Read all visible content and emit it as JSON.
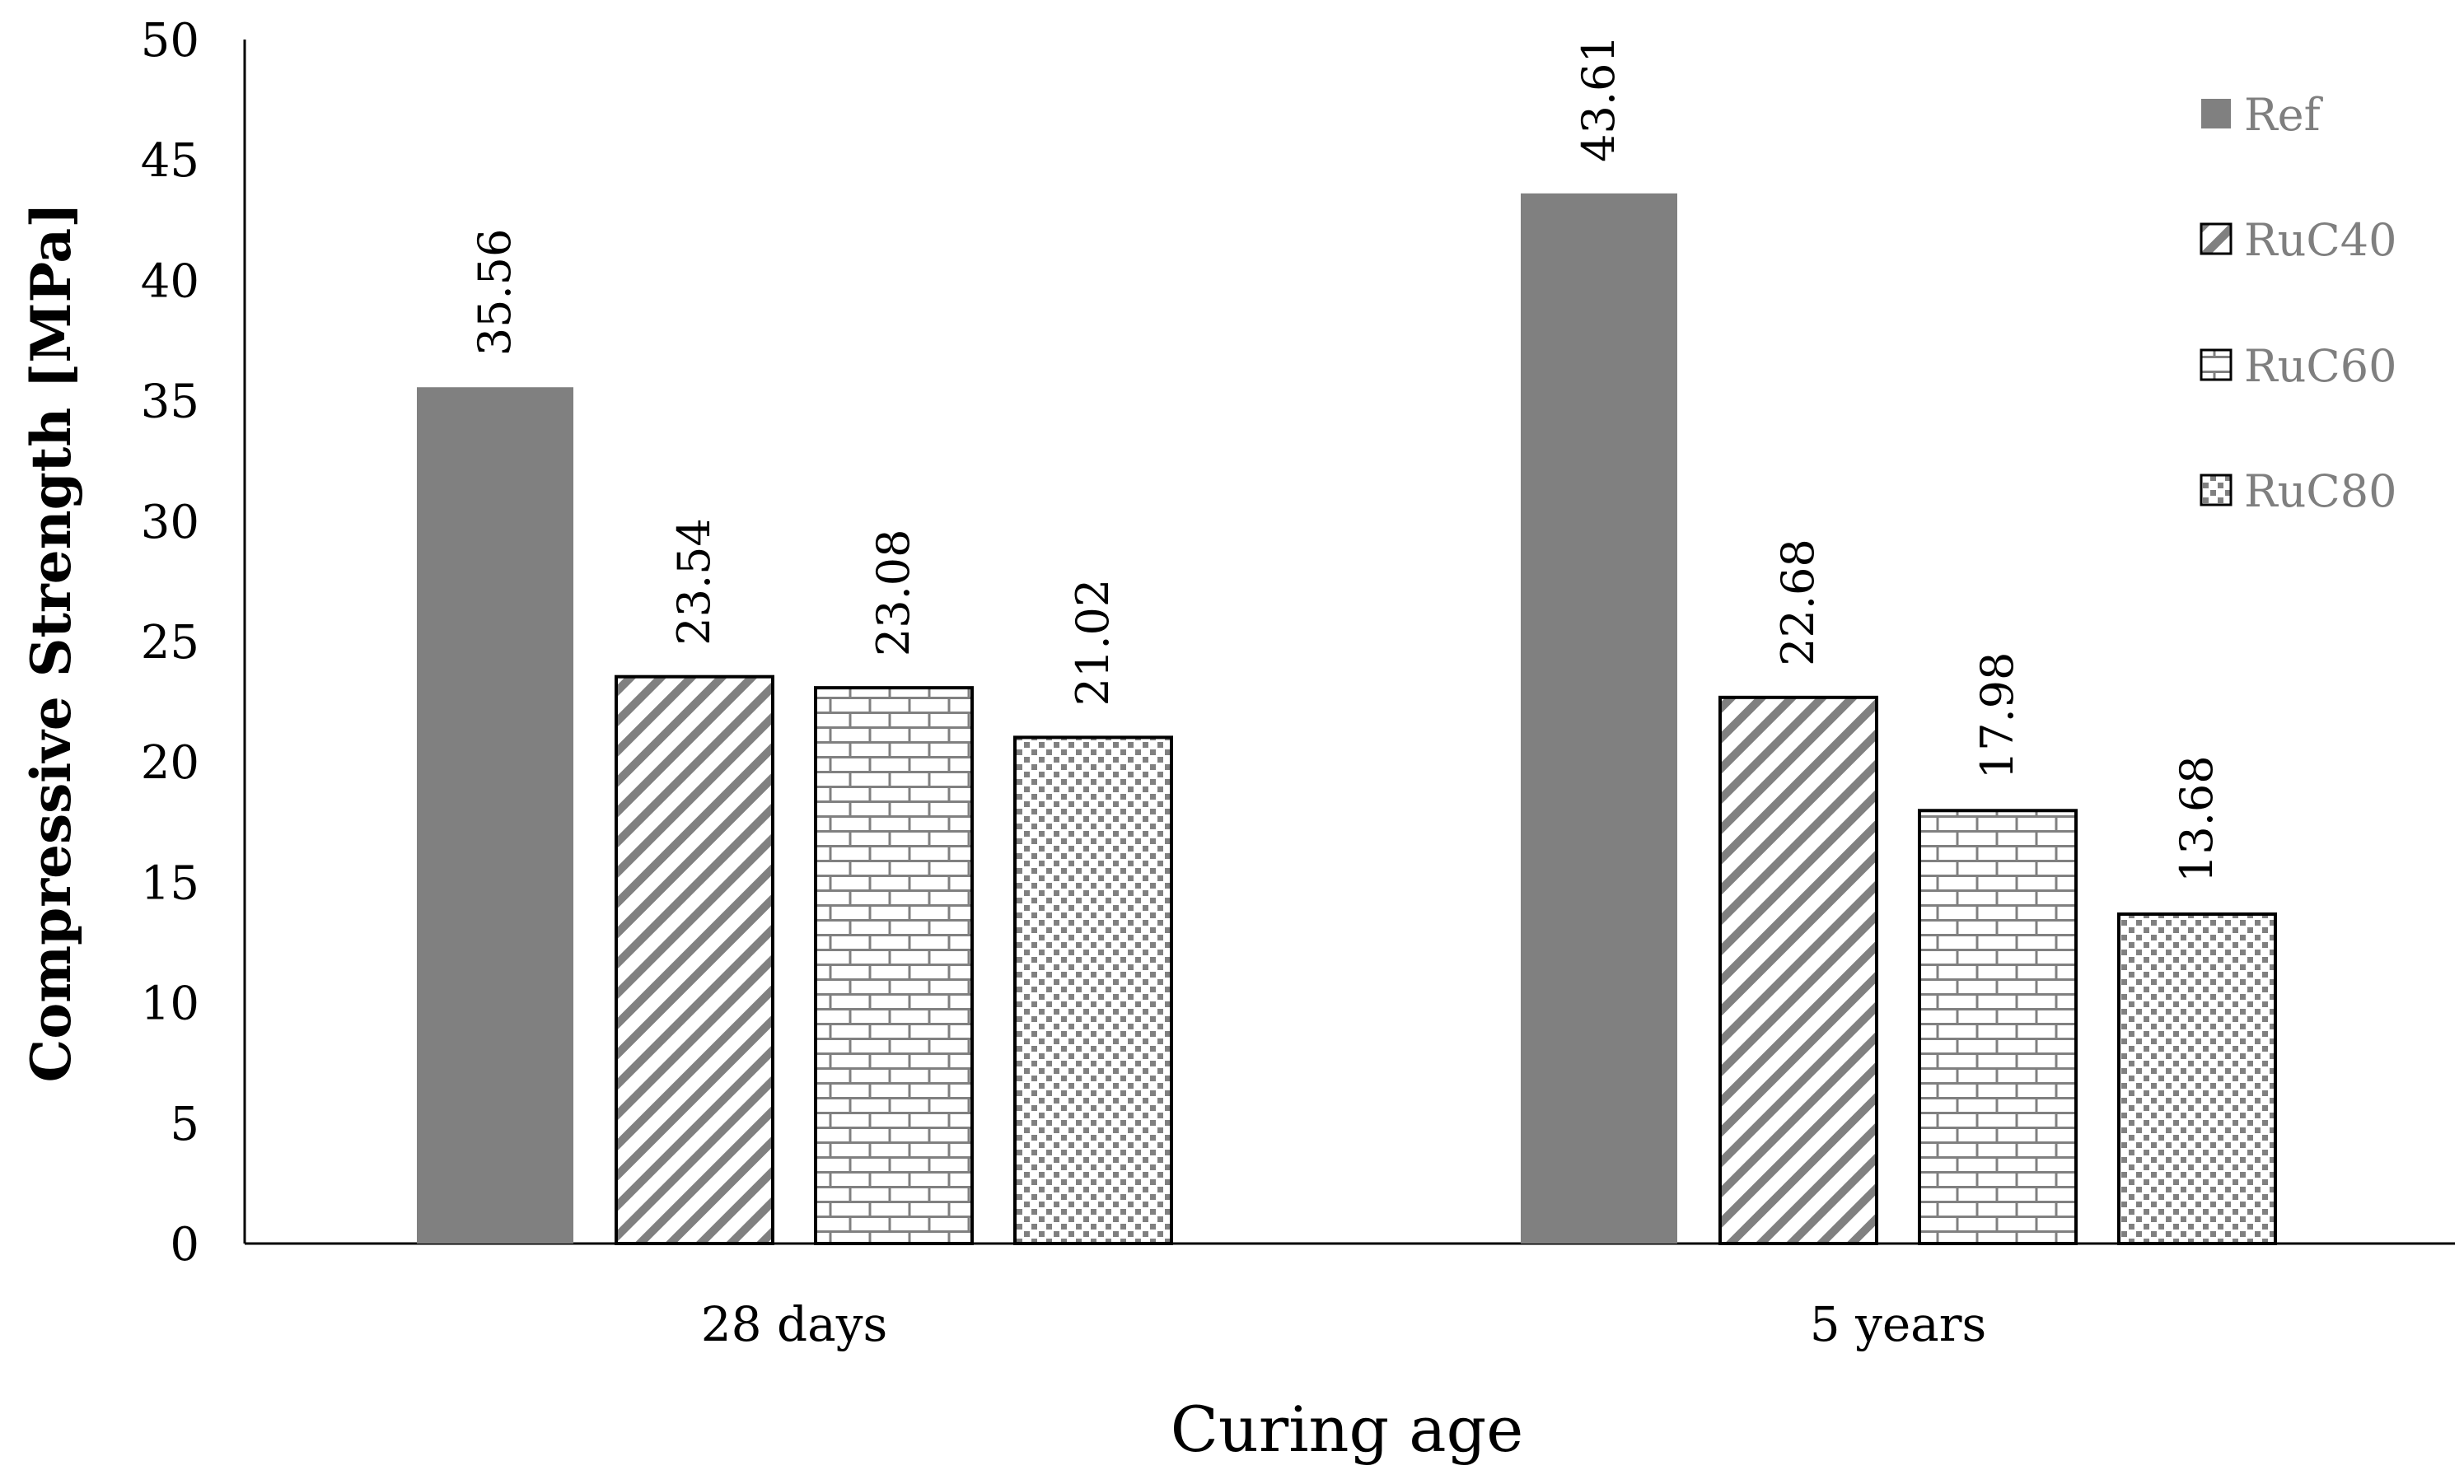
{
  "chart_data": {
    "type": "bar",
    "categories": [
      "28 days",
      "5 years"
    ],
    "series": [
      {
        "name": "Ref",
        "values": [
          35.56,
          43.61
        ],
        "labels": [
          "35.56",
          "43.61"
        ]
      },
      {
        "name": "RuC40",
        "values": [
          23.54,
          22.68
        ],
        "labels": [
          "23.54",
          "22.68"
        ]
      },
      {
        "name": "RuC60",
        "values": [
          23.08,
          17.98
        ],
        "labels": [
          "23.08",
          "17.98"
        ]
      },
      {
        "name": "RuC80",
        "values": [
          21.02,
          13.68
        ],
        "labels": [
          "21.02",
          "13.68"
        ]
      }
    ],
    "xlabel": "Curing age",
    "ylabel": "Compressive Strength [MPa]",
    "ylim": [
      0,
      50
    ],
    "yticks": [
      "0",
      "5",
      "10",
      "15",
      "20",
      "25",
      "30",
      "35",
      "40",
      "45",
      "50"
    ],
    "grid": false,
    "legend": "top-right"
  },
  "colors": {
    "ref_fill": "#808080",
    "pattern_ink": "#808080",
    "outline": "#000000",
    "text": "#000000",
    "legend_text": "#7f7f7f"
  }
}
